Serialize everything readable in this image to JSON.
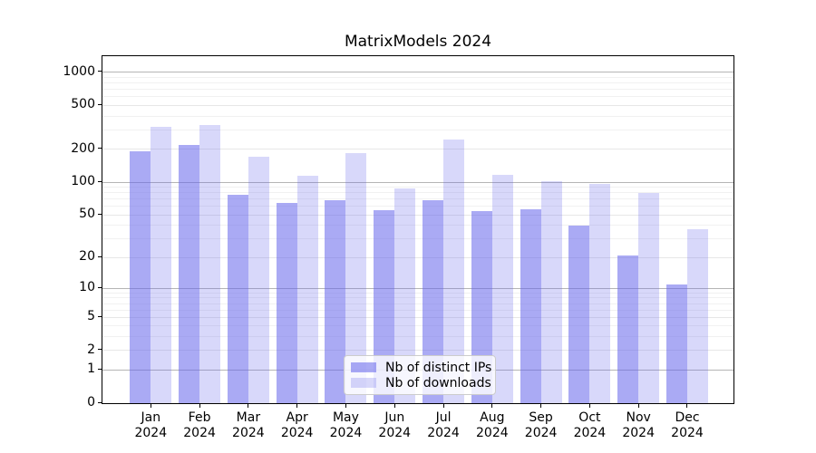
{
  "title": "MatrixModels 2024",
  "legend": {
    "items": [
      {
        "label": "Nb of distinct IPs",
        "key": "ips"
      },
      {
        "label": "Nb of downloads",
        "key": "downloads"
      }
    ]
  },
  "colors": {
    "ips_bar": "rgba(100,100,235,0.55)",
    "downloads_bar": "rgba(100,100,235,0.25)",
    "grid_major": "#b5b5b5",
    "grid_labeled": "#e7e7e7",
    "grid_minor": "#f1f1f1",
    "axis": "#000000"
  },
  "chart_data": {
    "type": "bar",
    "title": "MatrixModels 2024",
    "categories": [
      "Jan 2024",
      "Feb 2024",
      "Mar 2024",
      "Apr 2024",
      "May 2024",
      "Jun 2024",
      "Jul 2024",
      "Aug 2024",
      "Sep 2024",
      "Oct 2024",
      "Nov 2024",
      "Dec 2024"
    ],
    "x_tick_line1": [
      "Jan",
      "Feb",
      "Mar",
      "Apr",
      "May",
      "Jun",
      "Jul",
      "Aug",
      "Sep",
      "Oct",
      "Nov",
      "Dec"
    ],
    "x_tick_line2": "2024",
    "series": [
      {
        "name": "Nb of distinct IPs",
        "values": [
          190,
          218,
          76,
          64,
          68,
          55,
          69,
          54,
          56,
          40,
          21,
          11
        ]
      },
      {
        "name": "Nb of downloads",
        "values": [
          320,
          330,
          170,
          115,
          184,
          88,
          247,
          116,
          102,
          97,
          80,
          37
        ]
      }
    ],
    "yscale": "log1p",
    "y_ticks": [
      0,
      1,
      2,
      5,
      10,
      20,
      50,
      100,
      200,
      500,
      1000
    ],
    "y_major_ticks": [
      1,
      10,
      100,
      1000
    ],
    "y_minor_gridlines": [
      3,
      4,
      6,
      7,
      8,
      9,
      30,
      40,
      60,
      70,
      80,
      90,
      300,
      400,
      600,
      700,
      800,
      900
    ],
    "ylim": [
      0,
      1400
    ],
    "grid": true,
    "legend_position": "lower center"
  }
}
